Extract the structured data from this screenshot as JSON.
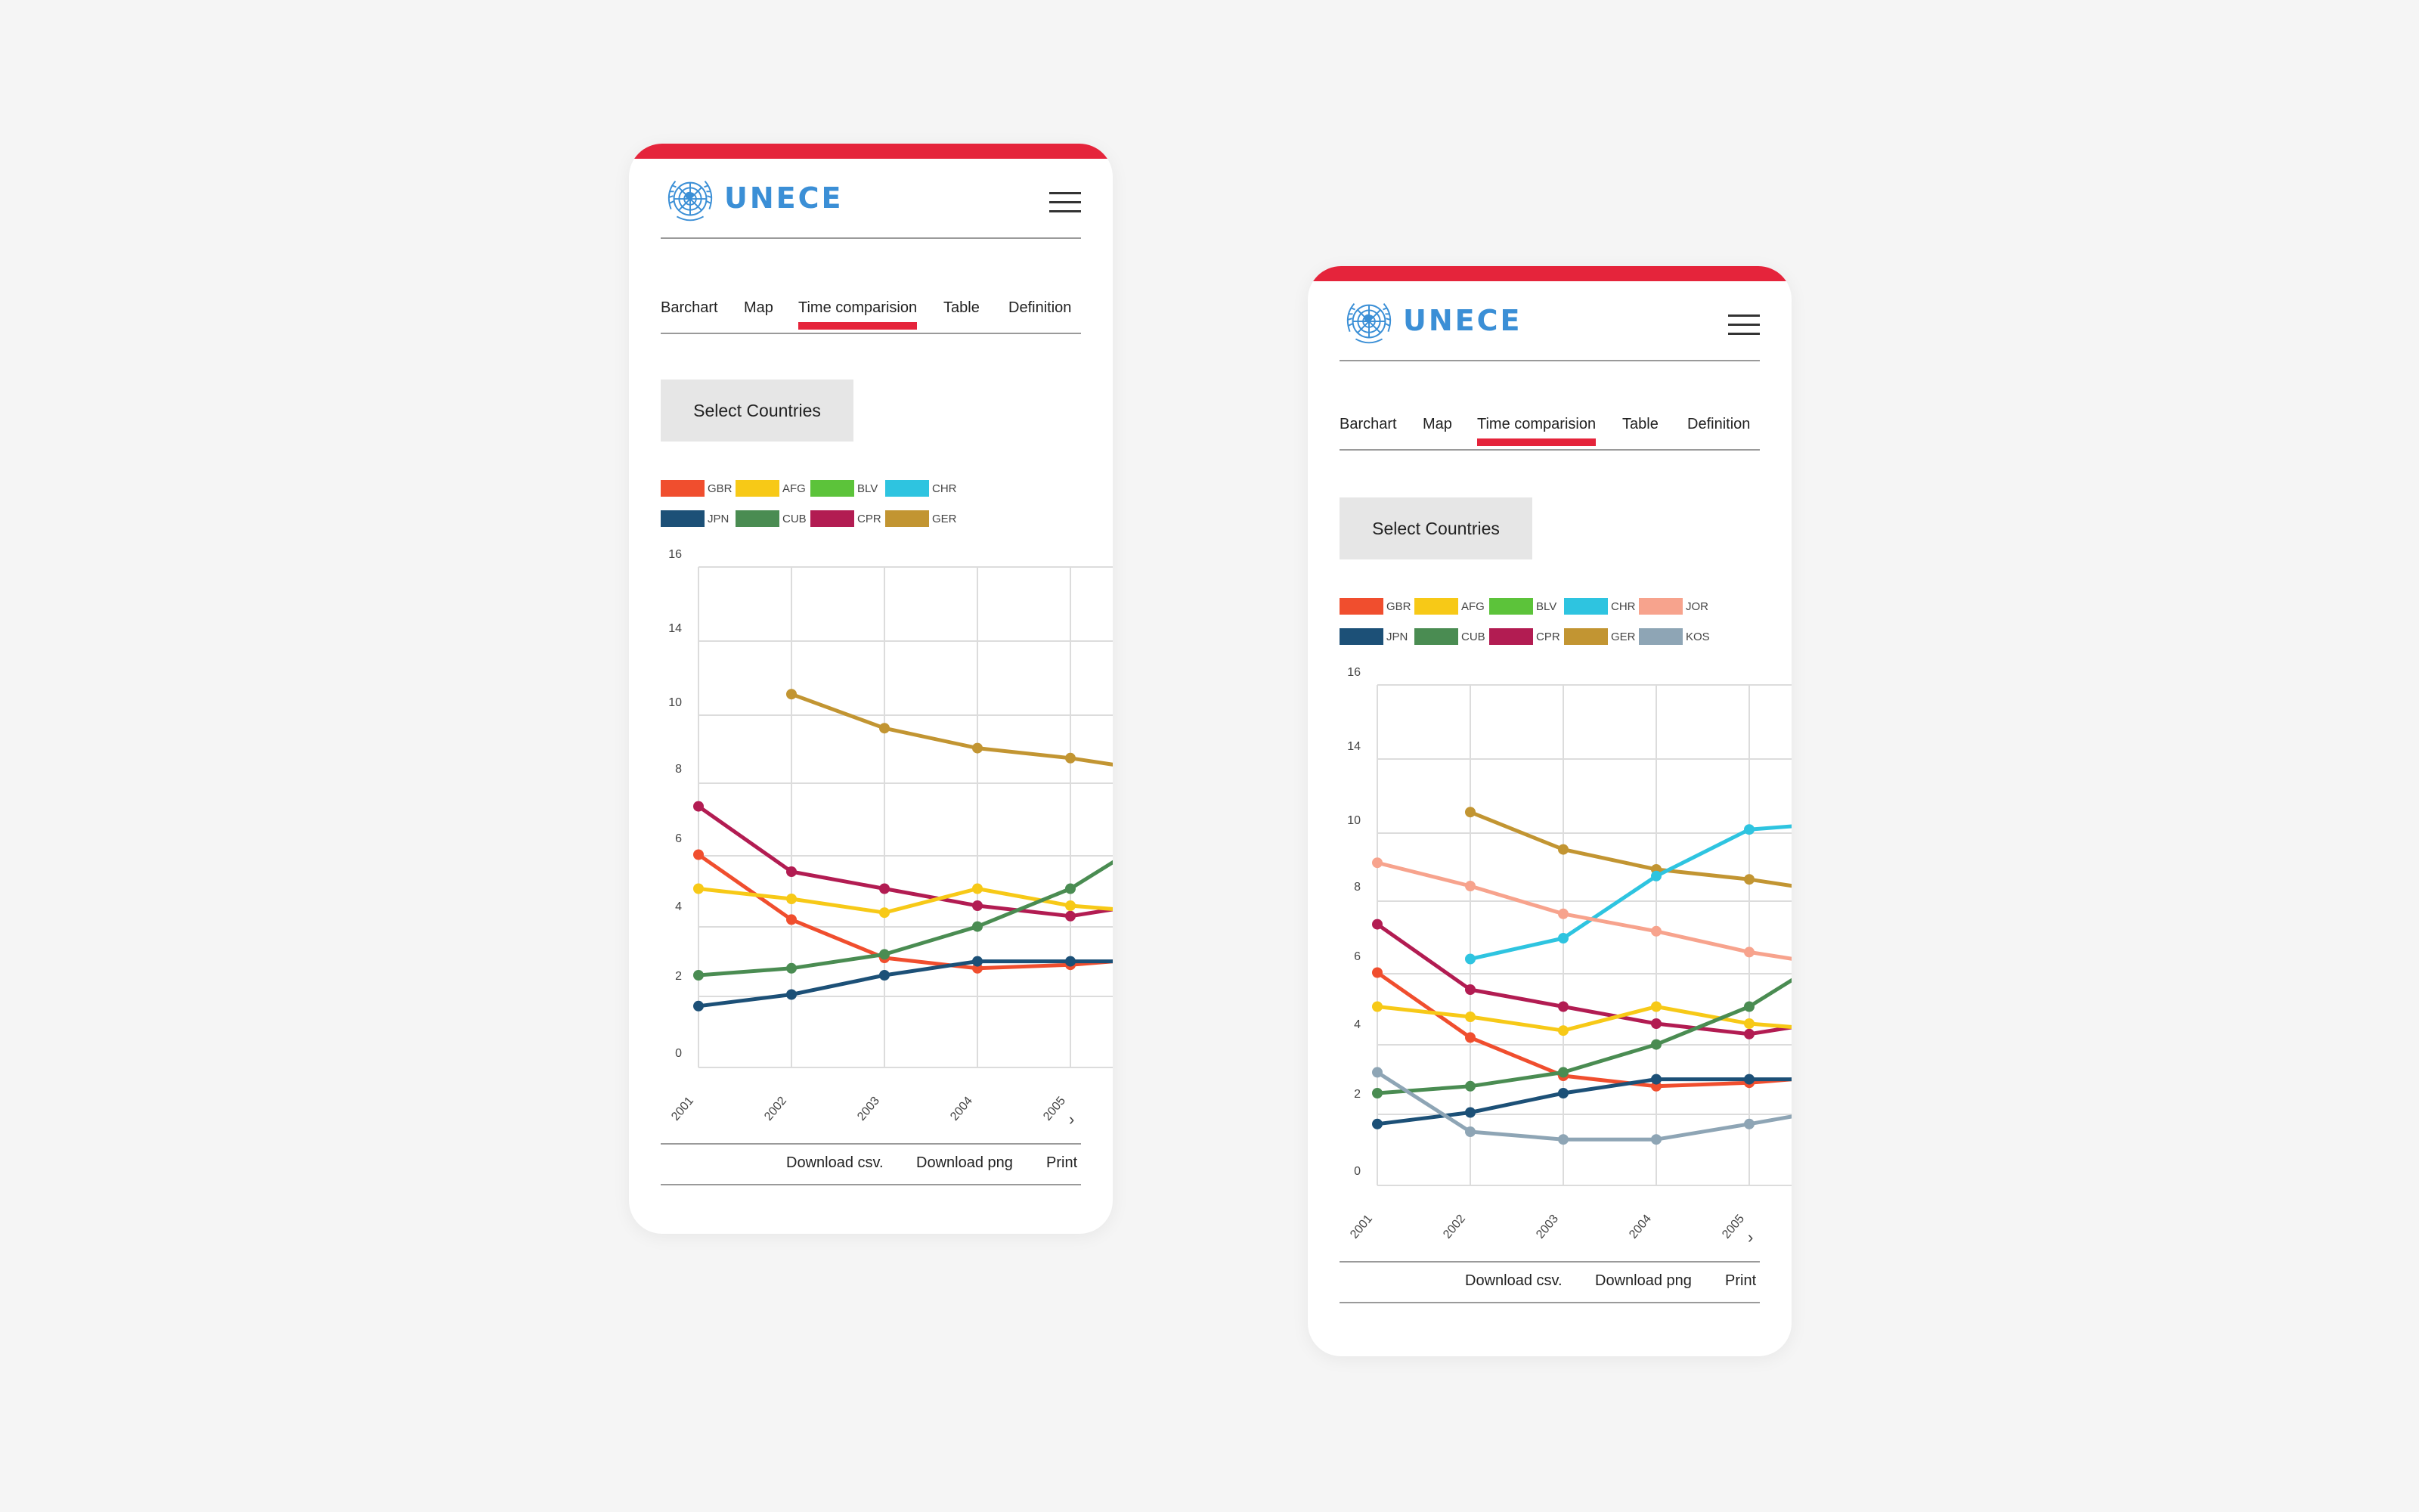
{
  "brand": {
    "name": "UNECE",
    "accent_color": "#e5243b",
    "logo_color": "#3b8fd6"
  },
  "tabs": [
    "Barchart",
    "Map",
    "Time comparision",
    "Table",
    "Definition"
  ],
  "active_tab": "Time comparision",
  "select_button_label": "Select Countries",
  "footer": {
    "download_csv": "Download csv.",
    "download_png": "Download png",
    "print": "Print"
  },
  "icons": {
    "menu": "hamburger-icon",
    "next": "chevron-right-icon",
    "logo": "un-emblem-icon"
  },
  "screens": [
    {
      "legend": [
        {
          "name": "GBR",
          "color": "#f04e2e"
        },
        {
          "name": "AFG",
          "color": "#f7c917"
        },
        {
          "name": "BLV",
          "color": "#5cc33a"
        },
        {
          "name": "CHR",
          "color": "#2ec4e0"
        },
        {
          "name": "JPN",
          "color": "#1c5077"
        },
        {
          "name": "CUB",
          "color": "#4a8c52"
        },
        {
          "name": "CPR",
          "color": "#b21c52"
        },
        {
          "name": "GER",
          "color": "#c29532"
        }
      ]
    },
    {
      "legend": [
        {
          "name": "GBR",
          "color": "#f04e2e"
        },
        {
          "name": "AFG",
          "color": "#f7c917"
        },
        {
          "name": "BLV",
          "color": "#5cc33a"
        },
        {
          "name": "CHR",
          "color": "#2ec4e0"
        },
        {
          "name": "JOR",
          "color": "#f7a38d"
        },
        {
          "name": "JPN",
          "color": "#1c5077"
        },
        {
          "name": "CUB",
          "color": "#4a8c52"
        },
        {
          "name": "CPR",
          "color": "#b21c52"
        },
        {
          "name": "GER",
          "color": "#c29532"
        },
        {
          "name": "KOS",
          "color": "#8ea5b5"
        }
      ]
    }
  ],
  "chart_data": [
    {
      "type": "line",
      "x": [
        "2001",
        "2002",
        "2003",
        "2004",
        "2005"
      ],
      "y_ticks": [
        "0",
        "2",
        "4",
        "6",
        "8",
        "10",
        "14",
        "16"
      ],
      "grid": true,
      "legend_position": "top-left",
      "series": [
        {
          "name": "GER",
          "color": "#c29532",
          "values": [
            null,
            10.4,
            9.2,
            8.6,
            8.3
          ],
          "end": 8.1
        },
        {
          "name": "CPR",
          "color": "#b21c52",
          "values": [
            6.9,
            5.0,
            4.5,
            4.0,
            3.7
          ],
          "end": 3.9
        },
        {
          "name": "GBR",
          "color": "#f04e2e",
          "values": [
            5.5,
            3.6,
            2.5,
            2.2,
            2.3
          ],
          "end": 2.4
        },
        {
          "name": "AFG",
          "color": "#f7c917",
          "values": [
            4.5,
            4.2,
            3.8,
            4.5,
            4.0
          ],
          "end": 3.9
        },
        {
          "name": "CUB",
          "color": "#4a8c52",
          "values": [
            2.0,
            2.2,
            2.6,
            3.4,
            4.5
          ],
          "end": 5.3
        },
        {
          "name": "JPN",
          "color": "#1c5077",
          "values": [
            1.2,
            1.5,
            2.0,
            2.4,
            2.4
          ],
          "end": 2.4
        }
      ]
    },
    {
      "type": "line",
      "x": [
        "2001",
        "2002",
        "2003",
        "2004",
        "2005"
      ],
      "y_ticks": [
        "0",
        "2",
        "4",
        "6",
        "8",
        "10",
        "14",
        "16"
      ],
      "grid": true,
      "legend_position": "top-left",
      "series": [
        {
          "name": "GER",
          "color": "#c29532",
          "values": [
            null,
            10.4,
            9.1,
            8.5,
            8.2
          ],
          "end": 8.0
        },
        {
          "name": "CHR",
          "color": "#2ec4e0",
          "values": [
            null,
            5.9,
            6.5,
            8.3,
            9.7
          ],
          "end": 9.8
        },
        {
          "name": "JOR",
          "color": "#f7a38d",
          "values": [
            8.7,
            8.0,
            7.2,
            6.7,
            6.1
          ],
          "end": 5.9
        },
        {
          "name": "CPR",
          "color": "#b21c52",
          "values": [
            6.9,
            5.0,
            4.5,
            4.0,
            3.7
          ],
          "end": 3.9
        },
        {
          "name": "GBR",
          "color": "#f04e2e",
          "values": [
            5.5,
            3.6,
            2.5,
            2.2,
            2.3
          ],
          "end": 2.4
        },
        {
          "name": "AFG",
          "color": "#f7c917",
          "values": [
            4.5,
            4.2,
            3.8,
            4.5,
            4.0
          ],
          "end": 3.9
        },
        {
          "name": "CUB",
          "color": "#4a8c52",
          "values": [
            2.0,
            2.2,
            2.6,
            3.4,
            4.5
          ],
          "end": 5.3
        },
        {
          "name": "JPN",
          "color": "#1c5077",
          "values": [
            1.2,
            1.5,
            2.0,
            2.4,
            2.4
          ],
          "end": 2.4
        },
        {
          "name": "KOS",
          "color": "#8ea5b5",
          "values": [
            2.6,
            1.0,
            0.8,
            0.8,
            1.2
          ],
          "end": 1.4
        }
      ]
    }
  ]
}
